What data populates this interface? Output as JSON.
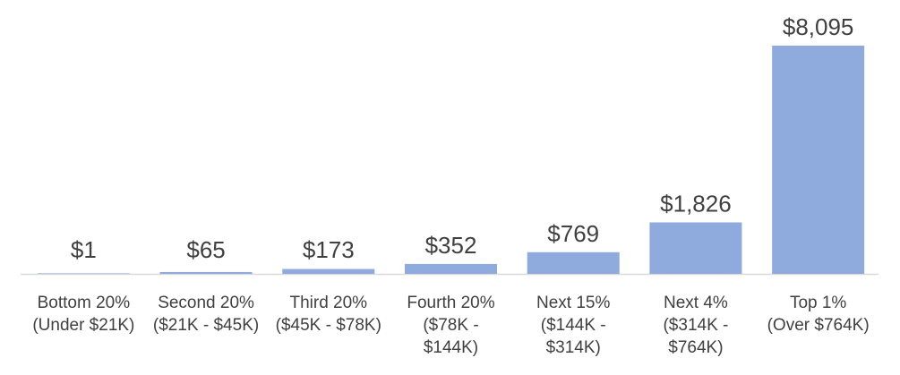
{
  "chart_data": {
    "type": "bar",
    "title": "",
    "xlabel": "",
    "ylabel": "",
    "categories": [
      [
        "Bottom 20%",
        "(Under $21K)"
      ],
      [
        "Second 20%",
        "($21K - $45K)"
      ],
      [
        "Third 20%",
        "($45K - $78K)"
      ],
      [
        "Fourth 20%",
        "($78K -",
        "$144K)"
      ],
      [
        "Next 15%",
        "($144K -",
        "$314K)"
      ],
      [
        "Next 4%",
        "($314K -",
        "$764K)"
      ],
      [
        "Top 1%",
        "(Over $764K)"
      ]
    ],
    "values": [
      1,
      65,
      173,
      352,
      769,
      1826,
      8095
    ],
    "value_labels": [
      "$1",
      "$65",
      "$173",
      "$352",
      "$769",
      "$1,826",
      "$8,095"
    ],
    "ylim": [
      0,
      8095
    ],
    "grid": false,
    "legend": "none",
    "colors": {
      "bar": "#8faadc",
      "text": "#404040",
      "axis": "#d9d9d9"
    }
  }
}
